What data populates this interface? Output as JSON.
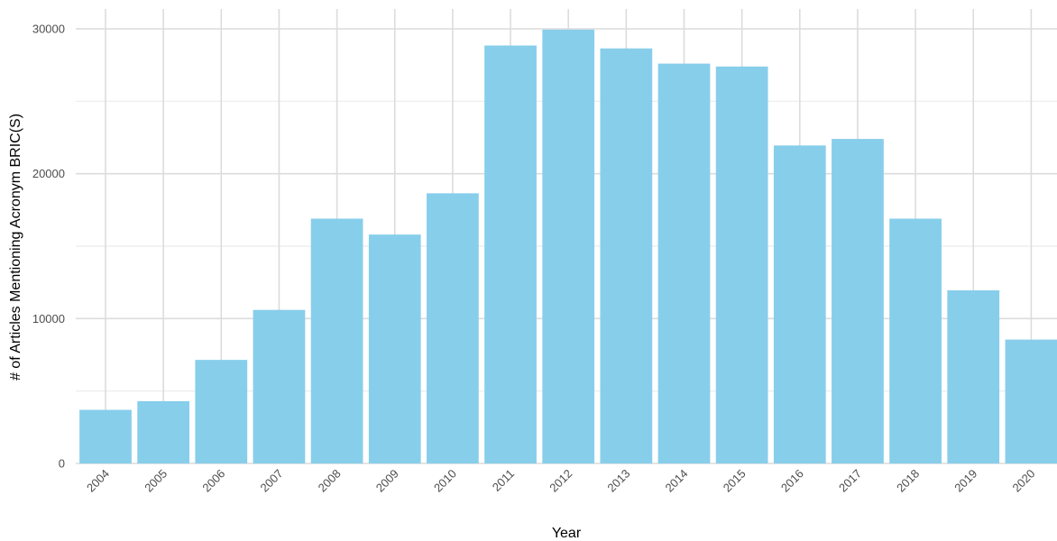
{
  "chart_data": {
    "type": "bar",
    "title": "",
    "xlabel": "Year",
    "ylabel": "# of Articles Mentioning Acronym BRIC(S)",
    "categories": [
      "2004",
      "2005",
      "2006",
      "2007",
      "2008",
      "2009",
      "2010",
      "2011",
      "2012",
      "2013",
      "2014",
      "2015",
      "2016",
      "2017",
      "2018",
      "2019",
      "2020"
    ],
    "values": [
      3700,
      4300,
      7150,
      10600,
      16900,
      15800,
      18650,
      28850,
      29950,
      28650,
      27600,
      27400,
      21950,
      22400,
      16900,
      11950,
      8550
    ],
    "ylim": [
      0,
      30000
    ],
    "yticks": [
      0,
      10000,
      20000,
      30000
    ],
    "grid": true,
    "legend": "none",
    "colors": {
      "bar": "#87CEEB",
      "grid_major": "#dcdcdc",
      "grid_minor": "#ebebeb",
      "tick_text": "#4d4d4d"
    }
  }
}
